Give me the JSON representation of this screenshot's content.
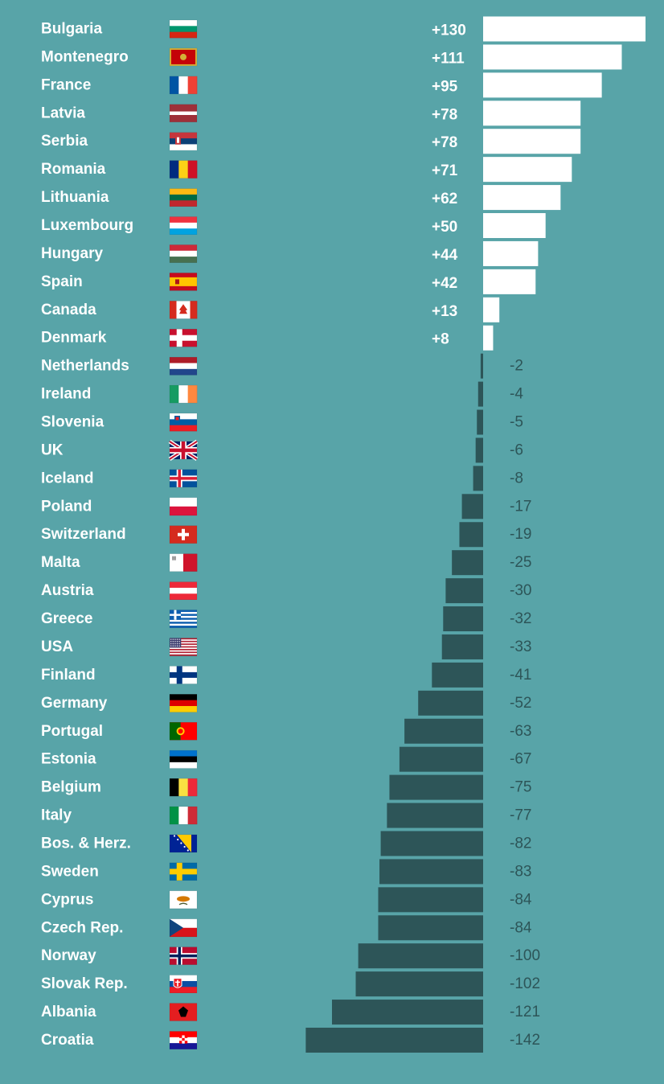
{
  "chart_data": {
    "type": "bar",
    "orientation": "horizontal",
    "title": "",
    "xlabel": "",
    "ylabel": "",
    "categories": [
      "Bulgaria",
      "Montenegro",
      "France",
      "Latvia",
      "Serbia",
      "Romania",
      "Lithuania",
      "Luxembourg",
      "Hungary",
      "Spain",
      "Canada",
      "Denmark",
      "Netherlands",
      "Ireland",
      "Slovenia",
      "UK",
      "Iceland",
      "Poland",
      "Switzerland",
      "Malta",
      "Austria",
      "Greece",
      "USA",
      "Finland",
      "Germany",
      "Portugal",
      "Estonia",
      "Belgium",
      "Italy",
      "Bos. & Herz.",
      "Sweden",
      "Cyprus",
      "Czech Rep.",
      "Norway",
      "Slovak Rep.",
      "Albania",
      "Croatia"
    ],
    "values": [
      130,
      111,
      95,
      78,
      78,
      71,
      62,
      50,
      44,
      42,
      13,
      8,
      -2,
      -4,
      -5,
      -6,
      -8,
      -17,
      -19,
      -25,
      -30,
      -32,
      -33,
      -41,
      -52,
      -63,
      -67,
      -75,
      -77,
      -82,
      -83,
      -84,
      -84,
      -100,
      -102,
      -121,
      -142
    ],
    "labels": [
      "+130",
      "+111",
      "+95",
      "+78",
      "+78",
      "+71",
      "+62",
      "+50",
      "+44",
      "+42",
      "+13",
      "+8",
      "-2",
      "-4",
      "-5",
      "-6",
      "-8",
      "-17",
      "-19",
      "-25",
      "-30",
      "-32",
      "-33",
      "-41",
      "-52",
      "-63",
      "-67",
      "-75",
      "-77",
      "-82",
      "-83",
      "-84",
      "-84",
      "-100",
      "-102",
      "-121",
      "-142"
    ],
    "flags": [
      "flag-bulgaria",
      "flag-montenegro",
      "flag-france",
      "flag-latvia",
      "flag-serbia",
      "flag-romania",
      "flag-lithuania",
      "flag-luxembourg",
      "flag-hungary",
      "flag-spain",
      "flag-canada",
      "flag-denmark",
      "flag-netherlands",
      "flag-ireland",
      "flag-slovenia",
      "flag-uk",
      "flag-iceland",
      "flag-poland",
      "flag-switzerland",
      "flag-malta",
      "flag-austria",
      "flag-greece",
      "flag-usa",
      "flag-finland",
      "flag-germany",
      "flag-portugal",
      "flag-estonia",
      "flag-belgium",
      "flag-italy",
      "flag-bosnia",
      "flag-sweden",
      "flag-cyprus",
      "flag-czech",
      "flag-norway",
      "flag-slovakia",
      "flag-albania",
      "flag-croatia"
    ],
    "xlim": [
      -142,
      130
    ],
    "grid": false,
    "legend": "none",
    "colors": {
      "background": "#58a4a8",
      "positive_bar": "#ffffff",
      "negative_bar": "#2d5558",
      "positive_label": "#ffffff",
      "negative_label": "#2d5558",
      "country_label": "#ffffff"
    }
  }
}
